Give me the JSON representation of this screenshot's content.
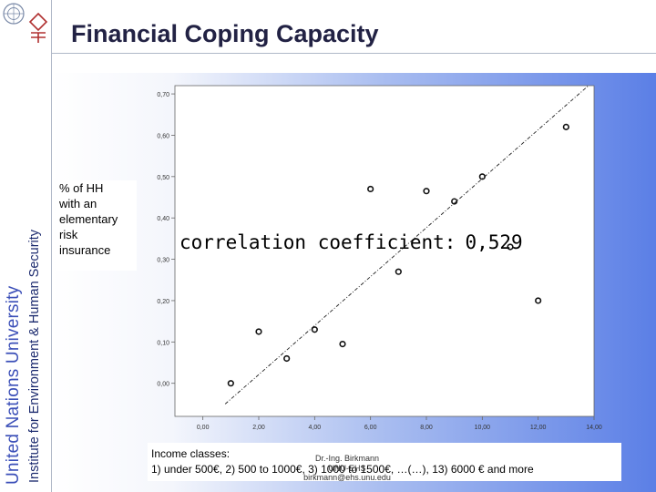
{
  "header": {
    "title": "Financial Coping Capacity",
    "university": "United Nations University",
    "institute": "Institute for Environment & Human Security"
  },
  "chart_note": {
    "y_label_text": [
      "% of HH",
      "with an",
      "elementary",
      "risk",
      "insurance"
    ],
    "correlation_label": "correlation coefficient:",
    "correlation_value": "0,529"
  },
  "income": {
    "line1": "Income classes:",
    "line2": "1) under  500€,  2) 500 to 1000€,  3) 1000 to 1500€,  …(…), 13) 6000 € and more"
  },
  "credit": {
    "name": "Dr.-Ing. Birkmann",
    "org": "UNU-EHS",
    "email": "birkmann@ehs.unu.edu"
  },
  "colors": {
    "accent": "#3b4fb8",
    "gradient_end": "#5b7fe6"
  },
  "chart_data": {
    "type": "scatter",
    "title": "",
    "xlabel": "",
    "ylabel": "% of HH with an elementary risk insurance",
    "xlim": [
      -1,
      14
    ],
    "ylim": [
      -0.08,
      0.72
    ],
    "x_ticks": [
      "0,00",
      "2,00",
      "4,00",
      "6,00",
      "8,00",
      "10,00",
      "12,00",
      "14,00"
    ],
    "x_tick_values": [
      0,
      2,
      4,
      6,
      8,
      10,
      12,
      14
    ],
    "y_ticks": [
      "0,00",
      "0,10",
      "0,20",
      "0,30",
      "0,40",
      "0,50",
      "0,60",
      "0,70"
    ],
    "y_tick_values": [
      0,
      0.1,
      0.2,
      0.3,
      0.4,
      0.5,
      0.6,
      0.7
    ],
    "points": [
      {
        "x": 1,
        "y": 0.0
      },
      {
        "x": 2,
        "y": 0.125
      },
      {
        "x": 3,
        "y": 0.06
      },
      {
        "x": 4,
        "y": 0.13
      },
      {
        "x": 5,
        "y": 0.095
      },
      {
        "x": 6,
        "y": 0.47
      },
      {
        "x": 7,
        "y": 0.27
      },
      {
        "x": 8,
        "y": 0.465
      },
      {
        "x": 9,
        "y": 0.44
      },
      {
        "x": 10,
        "y": 0.5
      },
      {
        "x": 11,
        "y": 0.33
      },
      {
        "x": 12,
        "y": 0.2
      },
      {
        "x": 13,
        "y": 0.62
      }
    ],
    "fit_line": {
      "x1": 0.8,
      "y1": -0.05,
      "x2": 13.8,
      "y2": 0.72
    },
    "grid": false
  }
}
